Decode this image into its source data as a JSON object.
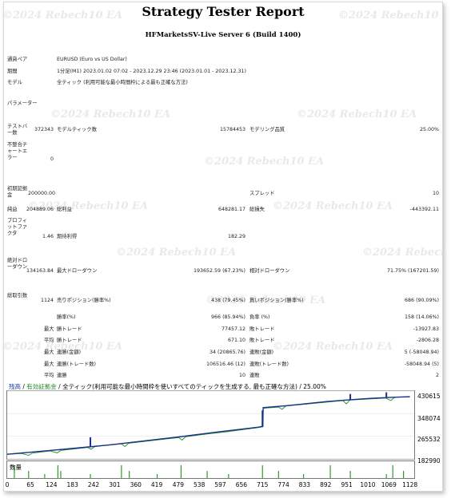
{
  "report": {
    "title": "Strategy Tester Report",
    "server": "HFMarketsSV-Live Server 6 (Build 1400)",
    "watermark": "©2024 Rebech10 EA"
  },
  "settings": {
    "symbol_label": "通貨ペア",
    "symbol_value": "EURUSD (Euro vs US Dollar)",
    "period_label": "期間",
    "period_value": "1分足(M1) 2023.01.02 07:02 - 2023.12.29 23:46 (2023.01.01 - 2023.12.31)",
    "model_label": "モデル",
    "model_value": "全ティック (利用可能な最小時間枠による最も正確な方法)",
    "params_label": "パラメーター"
  },
  "stats": {
    "bars_label": "テストバー数",
    "bars_value": "372343",
    "ticks_label": "モデルティック数",
    "ticks_value": "15784453",
    "quality_label": "モデリング品質",
    "quality_value": "25.00%",
    "mismatch_label": "不整合チャートエラー",
    "mismatch_value": "0",
    "deposit_label": "初期証拠金",
    "deposit_value": "200000.00",
    "spread_label": "スプレッド",
    "spread_value": "10",
    "net_label": "純益",
    "net_value": "204889.06",
    "gross_profit_label": "総利益",
    "gross_profit_value": "648281.17",
    "gross_loss_label": "総損失",
    "gross_loss_value": "-443392.11",
    "pf_label": "プロフィットファクタ",
    "pf_value": "1.46",
    "expected_label": "期待利得",
    "expected_value": "182.29",
    "abs_dd_label": "絶対ドローダウン",
    "abs_dd_value": "134163.84",
    "max_dd_label": "最大ドローダウン",
    "max_dd_value": "193652.59 (67.23%)",
    "rel_dd_label": "相対ドローダウン",
    "rel_dd_value": "71.75% (167201.59)",
    "total_label": "総取引数",
    "total_value": "1124",
    "short_label": "売りポジション(勝率%)",
    "short_value": "438 (79.45%)",
    "long_label": "買いポジション(勝率%)",
    "long_value": "686 (90.09%)",
    "win_label": "勝率(%)",
    "win_value": "966 (85.94%)",
    "lose_label": "負率 (%)",
    "lose_value": "158 (14.06%)",
    "max_label": "最大",
    "avg_label": "平均",
    "max_win_label": "勝トレード",
    "max_win_value": "77457.12",
    "max_loss_label": "敗トレード",
    "max_loss_value": "-13927.83",
    "avg_win_label": "勝トレード",
    "avg_win_value": "671.10",
    "avg_loss_label": "敗トレード",
    "avg_loss_value": "-2806.28",
    "max_cons_win_label": "連勝(金額)",
    "max_cons_win_value": "34 (20865.76)",
    "max_cons_loss_label": "連敗(金額)",
    "max_cons_loss_value": "5 (-58048.94)",
    "max_cons_profit_label": "連勝(トレード数)",
    "max_cons_profit_value": "106516.46 (12)",
    "max_cons_lossamt_label": "連敗(トレード数)",
    "max_cons_lossamt_value": "-58048.94 (5)",
    "avg_cons_win_label": "連勝",
    "avg_cons_win_value": "10",
    "avg_cons_loss_label": "連敗",
    "avg_cons_loss_value": "2"
  },
  "chart_data": {
    "type": "line",
    "legend_balance": "残高",
    "legend_sep": " / ",
    "legend_equity": "有効証拠金",
    "legend_rest": " / 全ティック(利用可能な最小時間枠を使いすべてのティックを生成する, 最も正確な方法) / 25.00%",
    "volume_label": "数量",
    "ytick_labels": [
      "430615",
      "348074",
      "265532",
      "182990"
    ],
    "xtick_labels": [
      "0",
      "65",
      "124",
      "183",
      "242",
      "301",
      "360",
      "419",
      "479",
      "538",
      "597",
      "656",
      "715",
      "774",
      "833",
      "892",
      "951",
      "1010",
      "1069",
      "1128"
    ],
    "ylim": [
      182990,
      430615
    ],
    "xlim": [
      0,
      1140
    ],
    "series": [
      {
        "color": "#1a2f8f",
        "points": [
          [
            0,
            200000
          ],
          [
            60,
            207000
          ],
          [
            120,
            214000
          ],
          [
            180,
            221000
          ],
          [
            240,
            228000
          ],
          [
            300,
            236000
          ],
          [
            360,
            245000
          ],
          [
            420,
            254000
          ],
          [
            480,
            263000
          ],
          [
            540,
            273000
          ],
          [
            600,
            283000
          ],
          [
            660,
            292000
          ],
          [
            700,
            298000
          ],
          [
            716,
            302000
          ],
          [
            717,
            370000
          ],
          [
            780,
            377000
          ],
          [
            840,
            385000
          ],
          [
            900,
            393000
          ],
          [
            960,
            399000
          ],
          [
            1020,
            404000
          ],
          [
            1080,
            408000
          ],
          [
            1128,
            410000
          ]
        ]
      },
      {
        "color": "#2e9a2e",
        "points": [
          [
            0,
            200000
          ],
          [
            40,
            203000
          ],
          [
            60,
            196000
          ],
          [
            70,
            204000
          ],
          [
            120,
            212000
          ],
          [
            140,
            205000
          ],
          [
            150,
            214000
          ],
          [
            225,
            225000
          ],
          [
            235,
            218000
          ],
          [
            245,
            228000
          ],
          [
            320,
            238000
          ],
          [
            330,
            228000
          ],
          [
            340,
            240000
          ],
          [
            420,
            252000
          ],
          [
            480,
            261000
          ],
          [
            490,
            252000
          ],
          [
            500,
            264000
          ],
          [
            560,
            274000
          ],
          [
            620,
            283000
          ],
          [
            700,
            297000
          ],
          [
            716,
            300000
          ],
          [
            717,
            368000
          ],
          [
            760,
            372000
          ],
          [
            770,
            364000
          ],
          [
            780,
            376000
          ],
          [
            900,
            391000
          ],
          [
            940,
            396000
          ],
          [
            950,
            384000
          ],
          [
            960,
            398000
          ],
          [
            1060,
            405000
          ],
          [
            1075,
            396000
          ],
          [
            1085,
            408000
          ],
          [
            1128,
            410000
          ]
        ]
      }
    ],
    "spikes": [
      [
        233,
        262000
      ],
      [
        715,
        360000
      ],
      [
        961,
        420000
      ],
      [
        1062,
        426000
      ]
    ],
    "volume_x": [
      20,
      60,
      105,
      142,
      150,
      233,
      320,
      342,
      420,
      487,
      560,
      620,
      715,
      760,
      830,
      905,
      961,
      1062,
      1080,
      1110
    ]
  }
}
